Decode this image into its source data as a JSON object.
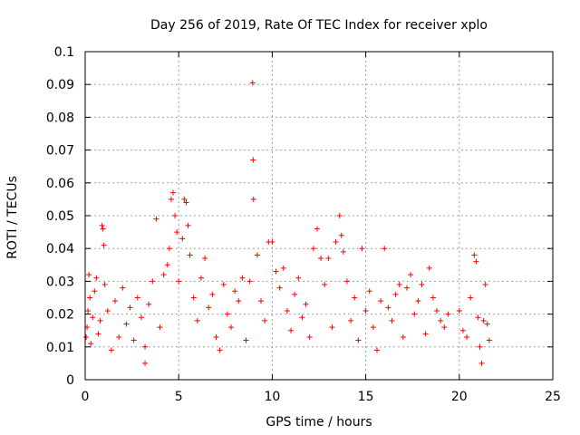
{
  "chart_data": {
    "type": "scatter",
    "title": "Day 256 of 2019, Rate Of TEC Index for receiver xplo",
    "xlabel": "GPS time / hours",
    "ylabel": "ROTI / TECUs",
    "xlim": [
      0,
      25
    ],
    "ylim": [
      0,
      0.1
    ],
    "x_ticks": [
      0,
      5,
      10,
      15,
      20,
      25
    ],
    "y_ticks": [
      0,
      0.01,
      0.02,
      0.03,
      0.04,
      0.05,
      0.06,
      0.07,
      0.08,
      0.09,
      0.1
    ],
    "x_tick_labels": [
      "0",
      "5",
      "10",
      "15",
      "20",
      "25"
    ],
    "y_tick_labels": [
      "0",
      "0.01",
      "0.02",
      "0.03",
      "0.04",
      "0.05",
      "0.06",
      "0.07",
      "0.08",
      "0.09",
      "0.1"
    ],
    "grid": true,
    "legend": "none",
    "marker": "plus",
    "marker_color": "#ff0000",
    "points": [
      [
        0.05,
        0.013
      ],
      [
        0.1,
        0.016
      ],
      [
        0.15,
        0.021
      ],
      [
        0.2,
        0.032
      ],
      [
        0.25,
        0.025
      ],
      [
        0.3,
        0.011
      ],
      [
        0.4,
        0.019
      ],
      [
        0.5,
        0.027
      ],
      [
        0.6,
        0.031
      ],
      [
        0.7,
        0.014
      ],
      [
        0.8,
        0.018
      ],
      [
        0.9,
        0.047
      ],
      [
        0.95,
        0.046
      ],
      [
        1.0,
        0.041
      ],
      [
        1.05,
        0.029
      ],
      [
        1.2,
        0.021
      ],
      [
        1.4,
        0.009
      ],
      [
        1.6,
        0.024
      ],
      [
        1.8,
        0.013
      ],
      [
        2.0,
        0.028
      ],
      [
        2.2,
        0.017
      ],
      [
        2.4,
        0.022
      ],
      [
        2.6,
        0.012
      ],
      [
        2.8,
        0.025
      ],
      [
        3.0,
        0.019
      ],
      [
        3.2,
        0.01
      ],
      [
        3.2,
        0.005
      ],
      [
        3.4,
        0.023
      ],
      [
        3.6,
        0.03
      ],
      [
        3.8,
        0.049
      ],
      [
        4.0,
        0.016
      ],
      [
        4.2,
        0.032
      ],
      [
        4.4,
        0.035
      ],
      [
        4.5,
        0.04
      ],
      [
        4.6,
        0.055
      ],
      [
        4.7,
        0.057
      ],
      [
        4.8,
        0.05
      ],
      [
        4.9,
        0.045
      ],
      [
        5.0,
        0.03
      ],
      [
        5.2,
        0.043
      ],
      [
        5.3,
        0.055
      ],
      [
        5.4,
        0.054
      ],
      [
        5.5,
        0.047
      ],
      [
        5.6,
        0.038
      ],
      [
        5.8,
        0.025
      ],
      [
        6.0,
        0.018
      ],
      [
        6.2,
        0.031
      ],
      [
        6.4,
        0.037
      ],
      [
        6.6,
        0.022
      ],
      [
        6.8,
        0.026
      ],
      [
        7.0,
        0.013
      ],
      [
        7.2,
        0.009
      ],
      [
        7.4,
        0.029
      ],
      [
        7.6,
        0.02
      ],
      [
        7.8,
        0.016
      ],
      [
        8.0,
        0.027
      ],
      [
        8.2,
        0.024
      ],
      [
        8.4,
        0.031
      ],
      [
        8.6,
        0.012
      ],
      [
        8.8,
        0.03
      ],
      [
        8.95,
        0.0905
      ],
      [
        8.98,
        0.067
      ],
      [
        9.0,
        0.055
      ],
      [
        9.2,
        0.038
      ],
      [
        9.4,
        0.024
      ],
      [
        9.6,
        0.018
      ],
      [
        9.8,
        0.042
      ],
      [
        10.0,
        0.042
      ],
      [
        10.2,
        0.033
      ],
      [
        10.4,
        0.028
      ],
      [
        10.6,
        0.034
      ],
      [
        10.8,
        0.021
      ],
      [
        11.0,
        0.015
      ],
      [
        11.2,
        0.026
      ],
      [
        11.4,
        0.031
      ],
      [
        11.6,
        0.019
      ],
      [
        11.8,
        0.023
      ],
      [
        12.0,
        0.013
      ],
      [
        12.2,
        0.04
      ],
      [
        12.4,
        0.046
      ],
      [
        12.6,
        0.037
      ],
      [
        12.8,
        0.029
      ],
      [
        13.0,
        0.037
      ],
      [
        13.2,
        0.016
      ],
      [
        13.4,
        0.042
      ],
      [
        13.6,
        0.05
      ],
      [
        13.7,
        0.044
      ],
      [
        13.8,
        0.039
      ],
      [
        14.0,
        0.03
      ],
      [
        14.2,
        0.018
      ],
      [
        14.4,
        0.025
      ],
      [
        14.6,
        0.012
      ],
      [
        14.8,
        0.04
      ],
      [
        15.0,
        0.021
      ],
      [
        15.2,
        0.027
      ],
      [
        15.4,
        0.016
      ],
      [
        15.6,
        0.009
      ],
      [
        15.8,
        0.024
      ],
      [
        16.0,
        0.04
      ],
      [
        16.2,
        0.022
      ],
      [
        16.4,
        0.018
      ],
      [
        16.6,
        0.026
      ],
      [
        16.8,
        0.029
      ],
      [
        17.0,
        0.013
      ],
      [
        17.2,
        0.028
      ],
      [
        17.4,
        0.032
      ],
      [
        17.6,
        0.02
      ],
      [
        17.8,
        0.024
      ],
      [
        18.0,
        0.029
      ],
      [
        18.2,
        0.014
      ],
      [
        18.4,
        0.034
      ],
      [
        18.6,
        0.025
      ],
      [
        18.8,
        0.021
      ],
      [
        19.0,
        0.018
      ],
      [
        19.2,
        0.016
      ],
      [
        19.4,
        0.02
      ],
      [
        20.0,
        0.021
      ],
      [
        20.2,
        0.015
      ],
      [
        20.4,
        0.013
      ],
      [
        20.6,
        0.025
      ],
      [
        20.8,
        0.038
      ],
      [
        20.9,
        0.036
      ],
      [
        21.0,
        0.019
      ],
      [
        21.1,
        0.01
      ],
      [
        21.2,
        0.005
      ],
      [
        21.3,
        0.018
      ],
      [
        21.4,
        0.029
      ],
      [
        21.5,
        0.017
      ],
      [
        21.6,
        0.012
      ]
    ]
  }
}
